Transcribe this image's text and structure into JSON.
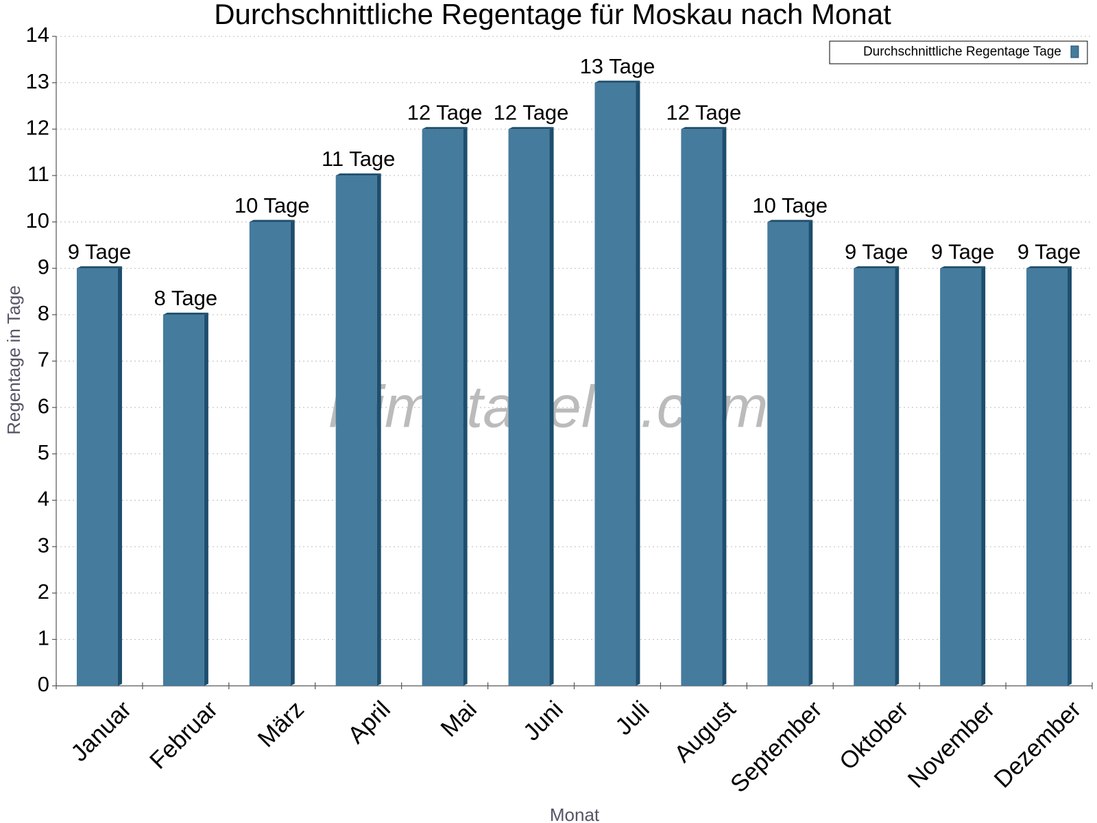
{
  "chart_data": {
    "type": "bar",
    "title": "Durchschnittliche Regentage für Moskau nach Monat",
    "x_label": "Monat",
    "y_label": "Regentage in Tage",
    "watermark": "klimatabelle.com",
    "categories": [
      "Januar",
      "Februar",
      "März",
      "April",
      "Mai",
      "Juni",
      "Juli",
      "August",
      "September",
      "Oktober",
      "November",
      "Dezember"
    ],
    "series": [
      {
        "name": "Durchschnittliche Regentage Tage",
        "color": "#457b9d",
        "values": [
          9,
          8,
          10,
          11,
          12,
          12,
          13,
          12,
          10,
          9,
          9,
          9
        ],
        "value_labels": [
          "9 Tage",
          "8 Tage",
          "10 Tage",
          "11 Tage",
          "12 Tage",
          "12 Tage",
          "13 Tage",
          "12 Tage",
          "10 Tage",
          "9 Tage",
          "9 Tage",
          "9 Tage"
        ]
      }
    ],
    "ylim": [
      0,
      14
    ],
    "yticks": [
      0,
      1,
      2,
      3,
      4,
      5,
      6,
      7,
      8,
      9,
      10,
      11,
      12,
      13,
      14
    ],
    "grid": true,
    "legend": "top-right"
  }
}
